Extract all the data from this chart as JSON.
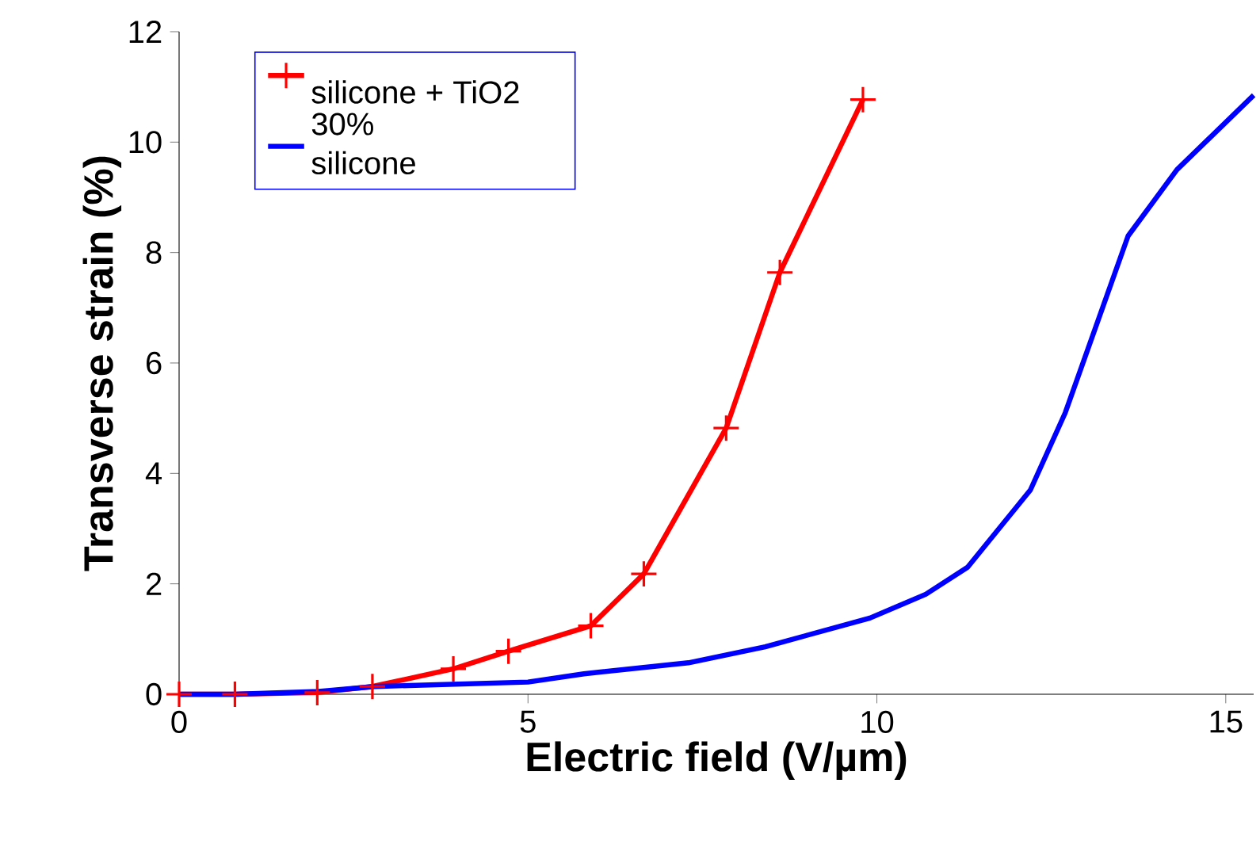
{
  "chart_data": {
    "type": "line",
    "xlabel": "Electric field (V/µm)",
    "ylabel": "Transverse strain (%)",
    "xlim": [
      0,
      15.4
    ],
    "xticks": [
      0,
      5,
      10,
      15
    ],
    "ylim": [
      0,
      12
    ],
    "yticks": [
      0,
      2,
      4,
      6,
      8,
      10,
      12
    ],
    "grid": false,
    "legend": "top left",
    "line_style": "solid",
    "series": [
      {
        "name": "silicone + TiO2 30%",
        "color": "#ff0000",
        "marker": "cross",
        "x": [
          0,
          0.8,
          1.98,
          2.77,
          3.93,
          4.72,
          5.9,
          6.66,
          7.84,
          8.61,
          9.8
        ],
        "values": [
          0,
          0,
          0.03,
          0.14,
          0.46,
          0.78,
          1.24,
          2.18,
          4.82,
          7.64,
          10.77
        ]
      },
      {
        "name": "silicone",
        "color": "#0000ff",
        "marker": "none",
        "x": [
          0,
          0.8,
          2,
          2.8,
          5.0,
          5.8,
          7.3,
          8.4,
          9.9,
          10.7,
          11.3,
          12.2,
          12.7,
          13.6,
          14.3,
          15.4
        ],
        "values": [
          0,
          0,
          0.05,
          0.14,
          0.22,
          0.37,
          0.57,
          0.86,
          1.38,
          1.81,
          2.3,
          3.7,
          5.1,
          8.3,
          9.5,
          10.85
        ]
      }
    ]
  }
}
